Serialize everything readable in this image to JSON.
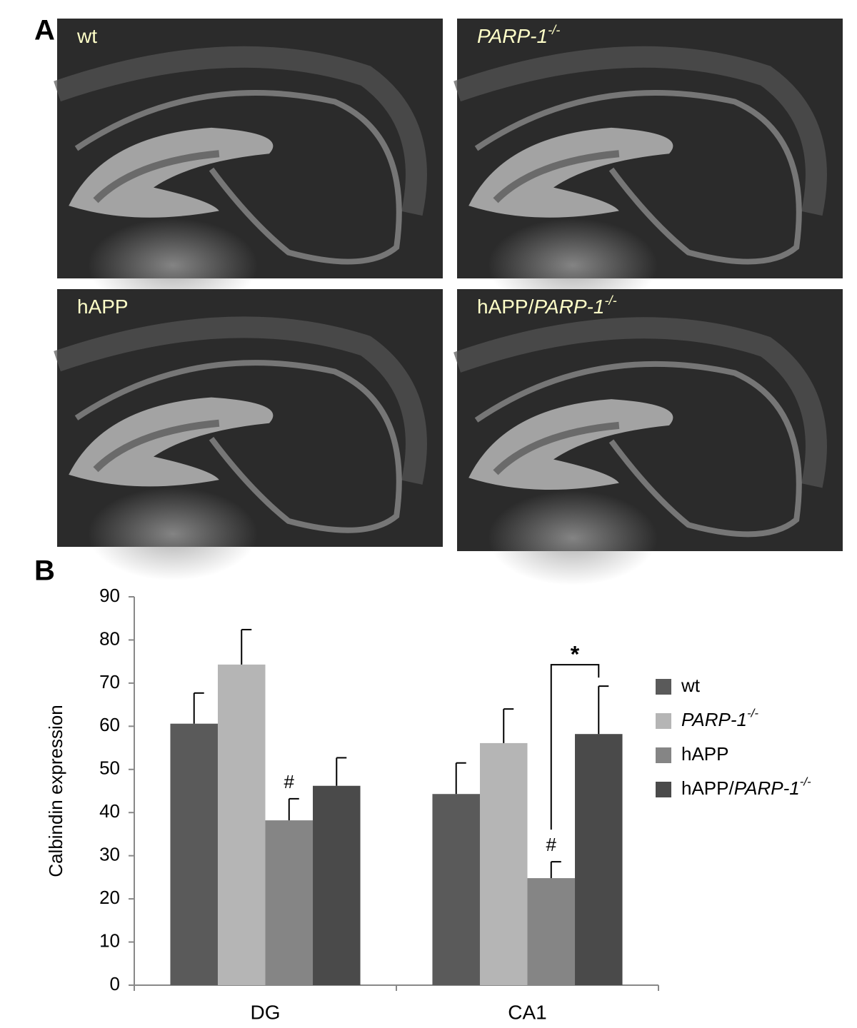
{
  "panel_a": {
    "letter": "A",
    "images": [
      {
        "label": [
          {
            "text": "wt"
          }
        ]
      },
      {
        "label": [
          {
            "text": "PARP-1",
            "italic": true
          },
          {
            "text": "-/-",
            "italic": true,
            "sup": true
          }
        ]
      },
      {
        "label": [
          {
            "text": "hAPP"
          }
        ]
      },
      {
        "label": [
          {
            "text": "hAPP/"
          },
          {
            "text": "PARP-1",
            "italic": true
          },
          {
            "text": "-/-",
            "italic": true,
            "sup": true
          }
        ]
      }
    ]
  },
  "chart_data": {
    "type": "bar",
    "panel_label": "B",
    "y_label": "Calbindin expression",
    "categories": [
      "DG",
      "CA1"
    ],
    "series": [
      {
        "name": [
          {
            "text": "wt"
          }
        ],
        "color": "#5a5a5a",
        "values": [
          60.6,
          44.3
        ],
        "errors": [
          7.1,
          7.2
        ]
      },
      {
        "name": [
          {
            "text": "PARP-1",
            "italic": true
          },
          {
            "text": "-/-",
            "italic": true,
            "sup": true
          }
        ],
        "color": "#b5b5b5",
        "values": [
          74.3,
          56.1
        ],
        "errors": [
          8.1,
          7.9
        ]
      },
      {
        "name": [
          {
            "text": "hAPP"
          }
        ],
        "color": "#858585",
        "values": [
          38.2,
          24.8
        ],
        "errors": [
          5.0,
          3.8
        ],
        "annotations": [
          "#",
          "#"
        ]
      },
      {
        "name": [
          {
            "text": "hAPP/"
          },
          {
            "text": "PARP-1",
            "italic": true
          },
          {
            "text": "-/-",
            "italic": true,
            "sup": true
          }
        ],
        "color": "#4a4a4a",
        "values": [
          46.2,
          58.2
        ],
        "errors": [
          6.5,
          11.1
        ]
      }
    ],
    "comparison_label": "*",
    "ylim": [
      0,
      90
    ],
    "yticks": [
      0,
      10,
      20,
      30,
      40,
      50,
      60,
      70,
      80,
      90
    ],
    "grid": false,
    "legend": "right"
  }
}
